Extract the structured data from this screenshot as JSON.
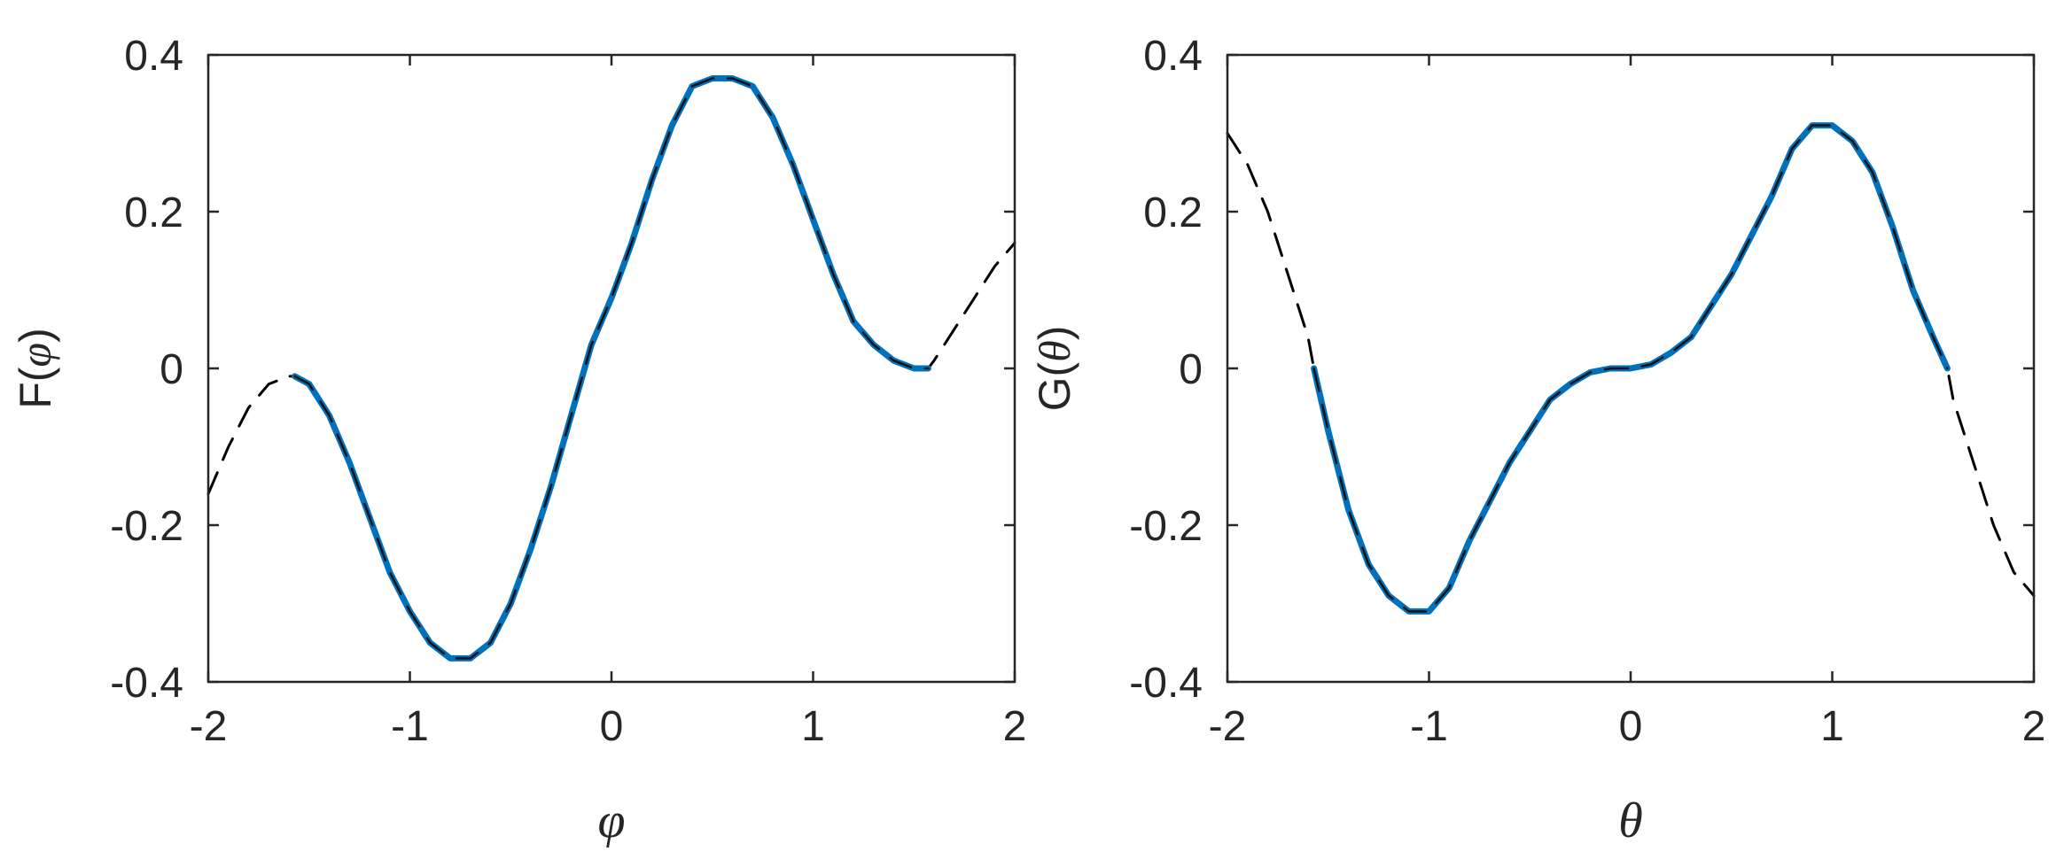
{
  "chart_data": [
    {
      "type": "line",
      "xlabel": "φ",
      "ylabel_prefix": "F(",
      "ylabel_symbol": "φ",
      "ylabel_suffix": ")",
      "xlim": [
        -2,
        2
      ],
      "ylim": [
        -0.4,
        0.4
      ],
      "xticks": [
        -2,
        -1,
        0,
        1,
        2
      ],
      "xtick_labels": [
        "-2",
        "-1",
        "0",
        "1",
        "2"
      ],
      "yticks": [
        -0.4,
        -0.2,
        0,
        0.2,
        0.4
      ],
      "ytick_labels": [
        "-0.4",
        "-0.2",
        "0",
        "0.2",
        "0.4"
      ],
      "grid": false,
      "series": [
        {
          "style": "dashed",
          "color": "#000000",
          "x": [
            -2.0,
            -1.9,
            -1.8,
            -1.7,
            -1.6,
            -1.571,
            -1.5,
            -1.4,
            -1.3,
            -1.2,
            -1.1,
            -1.0,
            -0.9,
            -0.8,
            -0.7,
            -0.6,
            -0.5,
            -0.4,
            -0.3,
            -0.2,
            -0.1,
            0.0,
            0.1,
            0.2,
            0.3,
            0.4,
            0.5,
            0.6,
            0.7,
            0.8,
            0.9,
            1.0,
            1.1,
            1.2,
            1.3,
            1.4,
            1.5,
            1.571,
            1.6,
            1.7,
            1.8,
            1.9,
            2.0
          ],
          "y": [
            -0.16,
            -0.1,
            -0.05,
            -0.02,
            -0.01,
            -0.01,
            -0.02,
            -0.06,
            -0.12,
            -0.19,
            -0.26,
            -0.31,
            -0.35,
            -0.37,
            -0.37,
            -0.35,
            -0.3,
            -0.23,
            -0.15,
            -0.06,
            0.03,
            0.09,
            0.16,
            0.24,
            0.31,
            0.36,
            0.37,
            0.37,
            0.36,
            0.32,
            0.26,
            0.19,
            0.12,
            0.06,
            0.03,
            0.01,
            0.0,
            0.0,
            0.01,
            0.05,
            0.09,
            0.13,
            0.16
          ]
        },
        {
          "style": "solid",
          "color": "#0072BD",
          "x": [
            -1.571,
            -1.5,
            -1.4,
            -1.3,
            -1.2,
            -1.1,
            -1.0,
            -0.9,
            -0.8,
            -0.7,
            -0.6,
            -0.5,
            -0.4,
            -0.3,
            -0.2,
            -0.1,
            0.0,
            0.1,
            0.2,
            0.3,
            0.4,
            0.5,
            0.6,
            0.7,
            0.8,
            0.9,
            1.0,
            1.1,
            1.2,
            1.3,
            1.4,
            1.5,
            1.571
          ],
          "y": [
            -0.01,
            -0.02,
            -0.06,
            -0.12,
            -0.19,
            -0.26,
            -0.31,
            -0.35,
            -0.37,
            -0.37,
            -0.35,
            -0.3,
            -0.23,
            -0.15,
            -0.06,
            0.03,
            0.09,
            0.16,
            0.24,
            0.31,
            0.36,
            0.37,
            0.37,
            0.36,
            0.32,
            0.26,
            0.19,
            0.12,
            0.06,
            0.03,
            0.01,
            0.0,
            0.0
          ]
        }
      ]
    },
    {
      "type": "line",
      "xlabel": "θ",
      "ylabel_prefix": "G(",
      "ylabel_symbol": "θ",
      "ylabel_suffix": ")",
      "xlim": [
        -2,
        2
      ],
      "ylim": [
        -0.4,
        0.4
      ],
      "xticks": [
        -2,
        -1,
        0,
        1,
        2
      ],
      "xtick_labels": [
        "-2",
        "-1",
        "0",
        "1",
        "2"
      ],
      "yticks": [
        -0.4,
        -0.2,
        0,
        0.2,
        0.4
      ],
      "ytick_labels": [
        "-0.4",
        "-0.2",
        "0",
        "0.2",
        "0.4"
      ],
      "grid": false,
      "series": [
        {
          "style": "dashed",
          "color": "#000000",
          "x": [
            -2.0,
            -1.9,
            -1.8,
            -1.7,
            -1.6,
            -1.571,
            -1.5,
            -1.4,
            -1.3,
            -1.2,
            -1.1,
            -1.0,
            -0.9,
            -0.8,
            -0.7,
            -0.6,
            -0.5,
            -0.4,
            -0.3,
            -0.2,
            -0.1,
            0.0,
            0.1,
            0.2,
            0.3,
            0.4,
            0.5,
            0.6,
            0.7,
            0.8,
            0.9,
            1.0,
            1.1,
            1.2,
            1.3,
            1.4,
            1.5,
            1.571,
            1.6,
            1.7,
            1.8,
            1.9,
            2.0
          ],
          "y": [
            0.3,
            0.26,
            0.2,
            0.12,
            0.04,
            0.0,
            -0.08,
            -0.18,
            -0.25,
            -0.29,
            -0.31,
            -0.31,
            -0.28,
            -0.22,
            -0.17,
            -0.12,
            -0.08,
            -0.04,
            -0.02,
            -0.005,
            0.0,
            0.0,
            0.005,
            0.02,
            0.04,
            0.08,
            0.12,
            0.17,
            0.22,
            0.28,
            0.31,
            0.31,
            0.29,
            0.25,
            0.18,
            0.1,
            0.04,
            0.0,
            -0.04,
            -0.12,
            -0.2,
            -0.26,
            -0.29
          ]
        },
        {
          "style": "solid",
          "color": "#0072BD",
          "x": [
            -1.571,
            -1.5,
            -1.4,
            -1.3,
            -1.2,
            -1.1,
            -1.0,
            -0.9,
            -0.8,
            -0.7,
            -0.6,
            -0.5,
            -0.4,
            -0.3,
            -0.2,
            -0.1,
            0.0,
            0.1,
            0.2,
            0.3,
            0.4,
            0.5,
            0.6,
            0.7,
            0.8,
            0.9,
            1.0,
            1.1,
            1.2,
            1.3,
            1.4,
            1.5,
            1.571
          ],
          "y": [
            0.0,
            -0.08,
            -0.18,
            -0.25,
            -0.29,
            -0.31,
            -0.31,
            -0.28,
            -0.22,
            -0.17,
            -0.12,
            -0.08,
            -0.04,
            -0.02,
            -0.005,
            0.0,
            0.0,
            0.005,
            0.02,
            0.04,
            0.08,
            0.12,
            0.17,
            0.22,
            0.28,
            0.31,
            0.31,
            0.29,
            0.25,
            0.18,
            0.1,
            0.04,
            0.0
          ]
        }
      ]
    }
  ]
}
